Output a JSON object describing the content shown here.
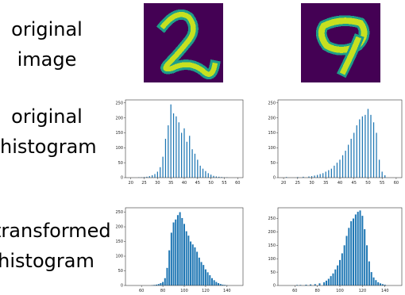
{
  "row_labels": {
    "original_image": [
      "original",
      "image"
    ],
    "original_histogram": [
      "original",
      "histogram"
    ],
    "transformed_histogram": [
      "transformed",
      "histogram"
    ]
  },
  "digits": [
    {
      "depicts": "handwritten digit 2",
      "background": "#440154",
      "stroke": "#c7e020"
    },
    {
      "depicts": "handwritten digit 9",
      "background": "#440154",
      "stroke": "#c7e020"
    }
  ],
  "bar_color": "#1f77b4",
  "chart_data": [
    {
      "type": "bar",
      "panel": "original histogram, left",
      "xlim": [
        18,
        62
      ],
      "ylim": [
        0,
        260
      ],
      "xticks": [
        20,
        25,
        30,
        35,
        40,
        45,
        50,
        55,
        60
      ],
      "yticks": [
        0,
        50,
        100,
        150,
        200,
        250
      ],
      "x": [
        23,
        24,
        25,
        26,
        27,
        28,
        29,
        30,
        31,
        32,
        33,
        34,
        35,
        36,
        37,
        38,
        39,
        40,
        41,
        42,
        43,
        44,
        45,
        46,
        47,
        48,
        49,
        50,
        51,
        52,
        53,
        54,
        55,
        56
      ],
      "values": [
        1,
        1,
        2,
        3,
        5,
        8,
        12,
        20,
        35,
        70,
        130,
        175,
        245,
        215,
        205,
        185,
        150,
        165,
        120,
        140,
        95,
        80,
        60,
        40,
        30,
        22,
        15,
        10,
        6,
        4,
        3,
        2,
        1,
        1
      ]
    },
    {
      "type": "bar",
      "panel": "original histogram, right",
      "xlim": [
        18,
        62
      ],
      "ylim": [
        0,
        260
      ],
      "xticks": [
        20,
        25,
        30,
        35,
        40,
        45,
        50,
        55,
        60
      ],
      "yticks": [
        0,
        50,
        100,
        150,
        200,
        250
      ],
      "x": [
        21,
        25,
        27,
        29,
        30,
        31,
        32,
        33,
        34,
        35,
        36,
        37,
        38,
        39,
        40,
        41,
        42,
        43,
        44,
        45,
        46,
        47,
        48,
        49,
        50,
        51,
        52,
        53,
        54,
        55,
        56
      ],
      "values": [
        2,
        2,
        3,
        4,
        5,
        7,
        9,
        12,
        15,
        20,
        25,
        30,
        40,
        50,
        60,
        75,
        90,
        110,
        130,
        150,
        175,
        195,
        205,
        210,
        230,
        210,
        185,
        150,
        60,
        20,
        8
      ]
    },
    {
      "type": "bar",
      "panel": "transformed histogram, left",
      "xlim": [
        45,
        155
      ],
      "ylim": [
        0,
        265
      ],
      "xticks": [
        60,
        80,
        100,
        120,
        140
      ],
      "yticks": [
        0,
        50,
        100,
        150,
        200,
        250
      ],
      "x": [
        70,
        72,
        74,
        76,
        78,
        80,
        82,
        84,
        86,
        88,
        90,
        92,
        94,
        96,
        98,
        100,
        102,
        104,
        106,
        108,
        110,
        112,
        114,
        116,
        118,
        120,
        122,
        124,
        126,
        128,
        130,
        132,
        134,
        136,
        138,
        140
      ],
      "values": [
        1,
        2,
        3,
        5,
        8,
        12,
        25,
        60,
        120,
        180,
        215,
        225,
        240,
        250,
        230,
        210,
        185,
        170,
        150,
        140,
        130,
        115,
        95,
        80,
        70,
        55,
        45,
        35,
        25,
        18,
        12,
        8,
        5,
        3,
        2,
        1
      ]
    },
    {
      "type": "bar",
      "panel": "transformed histogram, right",
      "xlim": [
        45,
        155
      ],
      "ylim": [
        0,
        290
      ],
      "xticks": [
        60,
        80,
        100,
        120,
        140
      ],
      "yticks": [
        0,
        50,
        100,
        150,
        200,
        250
      ],
      "x": [
        62,
        65,
        70,
        74,
        78,
        82,
        86,
        88,
        90,
        92,
        94,
        96,
        98,
        100,
        102,
        104,
        106,
        108,
        110,
        112,
        114,
        116,
        118,
        120,
        122,
        124,
        126,
        128,
        130,
        132,
        134,
        136,
        138,
        140
      ],
      "values": [
        2,
        2,
        3,
        4,
        5,
        8,
        12,
        18,
        25,
        35,
        45,
        60,
        75,
        95,
        120,
        150,
        185,
        215,
        240,
        250,
        265,
        275,
        280,
        260,
        210,
        150,
        90,
        50,
        30,
        20,
        12,
        8,
        5,
        3
      ]
    }
  ]
}
